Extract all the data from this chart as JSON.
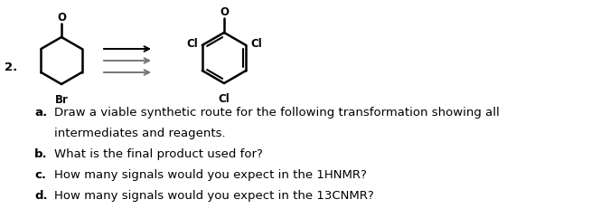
{
  "background_color": "#ffffff",
  "text_color": "#000000",
  "question_number": "2.",
  "questions": [
    [
      "a.",
      "Draw a viable synthetic route for the following transformation showing all"
    ],
    [
      "",
      "intermediates and reagents."
    ],
    [
      "b.",
      "What is the final product used for?"
    ],
    [
      "c.",
      "How many signals would you expect in the 1HNMR?"
    ],
    [
      "d.",
      "How many signals would you expect in the 13CNMR?"
    ]
  ],
  "arrow_color_black": "#000000",
  "arrow_color_gray": "#777777",
  "label_br": "Br",
  "label_cl1": "Cl",
  "label_cl2": "Cl",
  "label_cl3": "Cl",
  "label_o1": "O",
  "label_o2": "O",
  "font_size_label": 8.5,
  "font_size_question": 9.5,
  "font_size_number": 9.5
}
